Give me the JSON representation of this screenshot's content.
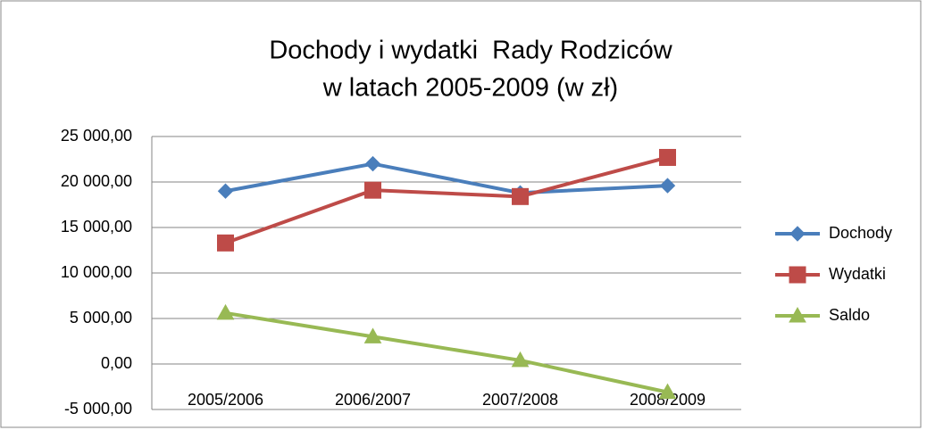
{
  "chart_data": {
    "type": "line",
    "title": [
      "Dochody i wydatki  Rady Rodziców",
      "w latach 2005-2009 (w zł)"
    ],
    "categories": [
      "2005/2006",
      "2006/2007",
      "2007/2008",
      "2008/2009"
    ],
    "series": [
      {
        "name": "Dochody",
        "color": "#4a7ebb",
        "marker": "diamond",
        "values": [
          19000,
          22000,
          18800,
          19600
        ]
      },
      {
        "name": "Wydatki",
        "color": "#be4b48",
        "marker": "square",
        "values": [
          13300,
          19100,
          18400,
          22700
        ]
      },
      {
        "name": "Saldo",
        "color": "#98b954",
        "marker": "triangle",
        "values": [
          5600,
          3000,
          400,
          -3100
        ]
      }
    ],
    "ylim": [
      -5000,
      25000
    ],
    "yticks": [
      {
        "value": -5000,
        "label": "-5 000,00"
      },
      {
        "value": 0,
        "label": "0,00"
      },
      {
        "value": 5000,
        "label": "5 000,00"
      },
      {
        "value": 10000,
        "label": "10 000,00"
      },
      {
        "value": 15000,
        "label": "15 000,00"
      },
      {
        "value": 20000,
        "label": "20 000,00"
      },
      {
        "value": 25000,
        "label": "25 000,00"
      }
    ],
    "grid": true,
    "legend": "right"
  }
}
